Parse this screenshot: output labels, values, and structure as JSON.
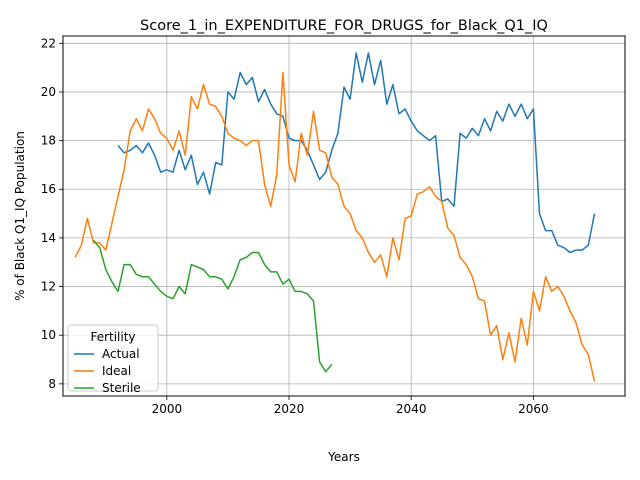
{
  "chart_data": {
    "type": "line",
    "title": "Score_1_in_EXPENDITURE_FOR_DRUGS_for_Black_Q1_IQ",
    "xlabel": "Years",
    "ylabel": "% of Black Q1_IQ Population",
    "xlim": [
      1983,
      2075
    ],
    "ylim": [
      7.5,
      22.3
    ],
    "xticks": [
      2000,
      2020,
      2040,
      2060
    ],
    "yticks": [
      8,
      10,
      12,
      14,
      16,
      18,
      20,
      22
    ],
    "grid": true,
    "legend": {
      "title": "Fertility",
      "position": "lower-left"
    },
    "series": [
      {
        "name": "Actual",
        "color": "#1f77b4",
        "x": [
          1992,
          1993,
          1994,
          1995,
          1996,
          1997,
          1998,
          1999,
          2000,
          2001,
          2002,
          2003,
          2004,
          2005,
          2006,
          2007,
          2008,
          2009,
          2010,
          2011,
          2012,
          2013,
          2014,
          2015,
          2016,
          2017,
          2018,
          2019,
          2020,
          2021,
          2022,
          2023,
          2024,
          2025,
          2026,
          2027,
          2028,
          2029,
          2030,
          2031,
          2032,
          2033,
          2034,
          2035,
          2036,
          2037,
          2038,
          2039,
          2040,
          2041,
          2042,
          2043,
          2044,
          2045,
          2046,
          2047,
          2048,
          2049,
          2050,
          2051,
          2052,
          2053,
          2054,
          2055,
          2056,
          2057,
          2058,
          2059,
          2060,
          2061,
          2062,
          2063,
          2064,
          2065,
          2066,
          2067,
          2068,
          2069,
          2070
        ],
        "values": [
          17.8,
          17.5,
          17.6,
          17.8,
          17.5,
          17.9,
          17.4,
          16.7,
          16.8,
          16.7,
          17.6,
          16.8,
          17.4,
          16.2,
          16.7,
          15.8,
          17.1,
          17.0,
          20.0,
          19.7,
          20.8,
          20.3,
          20.6,
          19.6,
          20.1,
          19.5,
          19.1,
          19.0,
          18.1,
          18.0,
          18.0,
          17.6,
          17.0,
          16.4,
          16.7,
          17.6,
          18.3,
          20.2,
          19.7,
          21.6,
          20.4,
          21.6,
          20.3,
          21.3,
          19.5,
          20.3,
          19.1,
          19.3,
          18.8,
          18.4,
          18.2,
          18.0,
          18.2,
          15.5,
          15.6,
          15.3,
          18.3,
          18.1,
          18.5,
          18.2,
          18.9,
          18.4,
          19.2,
          18.8,
          19.5,
          19.0,
          19.5,
          18.9,
          19.3,
          15.0,
          14.3,
          14.3,
          13.7,
          13.6,
          13.4,
          13.5,
          13.5,
          13.7,
          15.0
        ]
      },
      {
        "name": "Ideal",
        "color": "#ff7f0e",
        "x": [
          1985,
          1986,
          1987,
          1988,
          1989,
          1990,
          1991,
          1992,
          1993,
          1994,
          1995,
          1996,
          1997,
          1998,
          1999,
          2000,
          2001,
          2002,
          2003,
          2004,
          2005,
          2006,
          2007,
          2008,
          2009,
          2010,
          2011,
          2012,
          2013,
          2014,
          2015,
          2016,
          2017,
          2018,
          2019,
          2020,
          2021,
          2022,
          2023,
          2024,
          2025,
          2026,
          2027,
          2028,
          2029,
          2030,
          2031,
          2032,
          2033,
          2034,
          2035,
          2036,
          2037,
          2038,
          2039,
          2040,
          2041,
          2042,
          2043,
          2044,
          2045,
          2046,
          2047,
          2048,
          2049,
          2050,
          2051,
          2052,
          2053,
          2054,
          2055,
          2056,
          2057,
          2058,
          2059,
          2060,
          2061,
          2062,
          2063,
          2064,
          2065,
          2066,
          2067,
          2068,
          2069,
          2070
        ],
        "values": [
          13.2,
          13.7,
          14.8,
          13.8,
          13.8,
          13.5,
          14.6,
          15.7,
          16.8,
          18.4,
          18.9,
          18.4,
          19.3,
          18.9,
          18.3,
          18.1,
          17.6,
          18.4,
          17.4,
          19.8,
          19.3,
          20.3,
          19.5,
          19.4,
          19.0,
          18.3,
          18.1,
          18.0,
          17.8,
          18.0,
          18.0,
          16.2,
          15.3,
          16.6,
          20.8,
          17.0,
          16.3,
          18.3,
          17.4,
          19.2,
          17.6,
          17.5,
          16.5,
          16.2,
          15.3,
          15.0,
          14.3,
          14.0,
          13.4,
          13.0,
          13.3,
          12.4,
          14.0,
          13.1,
          14.8,
          14.9,
          15.8,
          15.9,
          16.1,
          15.7,
          15.5,
          14.4,
          14.1,
          13.2,
          12.9,
          12.4,
          11.5,
          11.4,
          10.0,
          10.4,
          9.0,
          10.1,
          8.9,
          10.7,
          9.6,
          11.8,
          11.0,
          12.4,
          11.8,
          12.0,
          11.6,
          11.0,
          10.5,
          9.6,
          9.2,
          8.1
        ]
      },
      {
        "name": "Sterile",
        "color": "#2ca02c",
        "x": [
          1988,
          1989,
          1990,
          1991,
          1992,
          1993,
          1994,
          1995,
          1996,
          1997,
          1998,
          1999,
          2000,
          2001,
          2002,
          2003,
          2004,
          2005,
          2006,
          2007,
          2008,
          2009,
          2010,
          2011,
          2012,
          2013,
          2014,
          2015,
          2016,
          2017,
          2018,
          2019,
          2020,
          2021,
          2022,
          2023,
          2024,
          2025,
          2026,
          2027
        ],
        "values": [
          13.9,
          13.6,
          12.7,
          12.2,
          11.8,
          12.9,
          12.9,
          12.5,
          12.4,
          12.4,
          12.1,
          11.8,
          11.6,
          11.5,
          12.0,
          11.7,
          12.9,
          12.8,
          12.7,
          12.4,
          12.4,
          12.3,
          11.9,
          12.4,
          13.1,
          13.2,
          13.4,
          13.4,
          12.9,
          12.6,
          12.6,
          12.1,
          12.3,
          11.8,
          11.8,
          11.7,
          11.4,
          8.9,
          8.5,
          8.8
        ]
      }
    ]
  }
}
